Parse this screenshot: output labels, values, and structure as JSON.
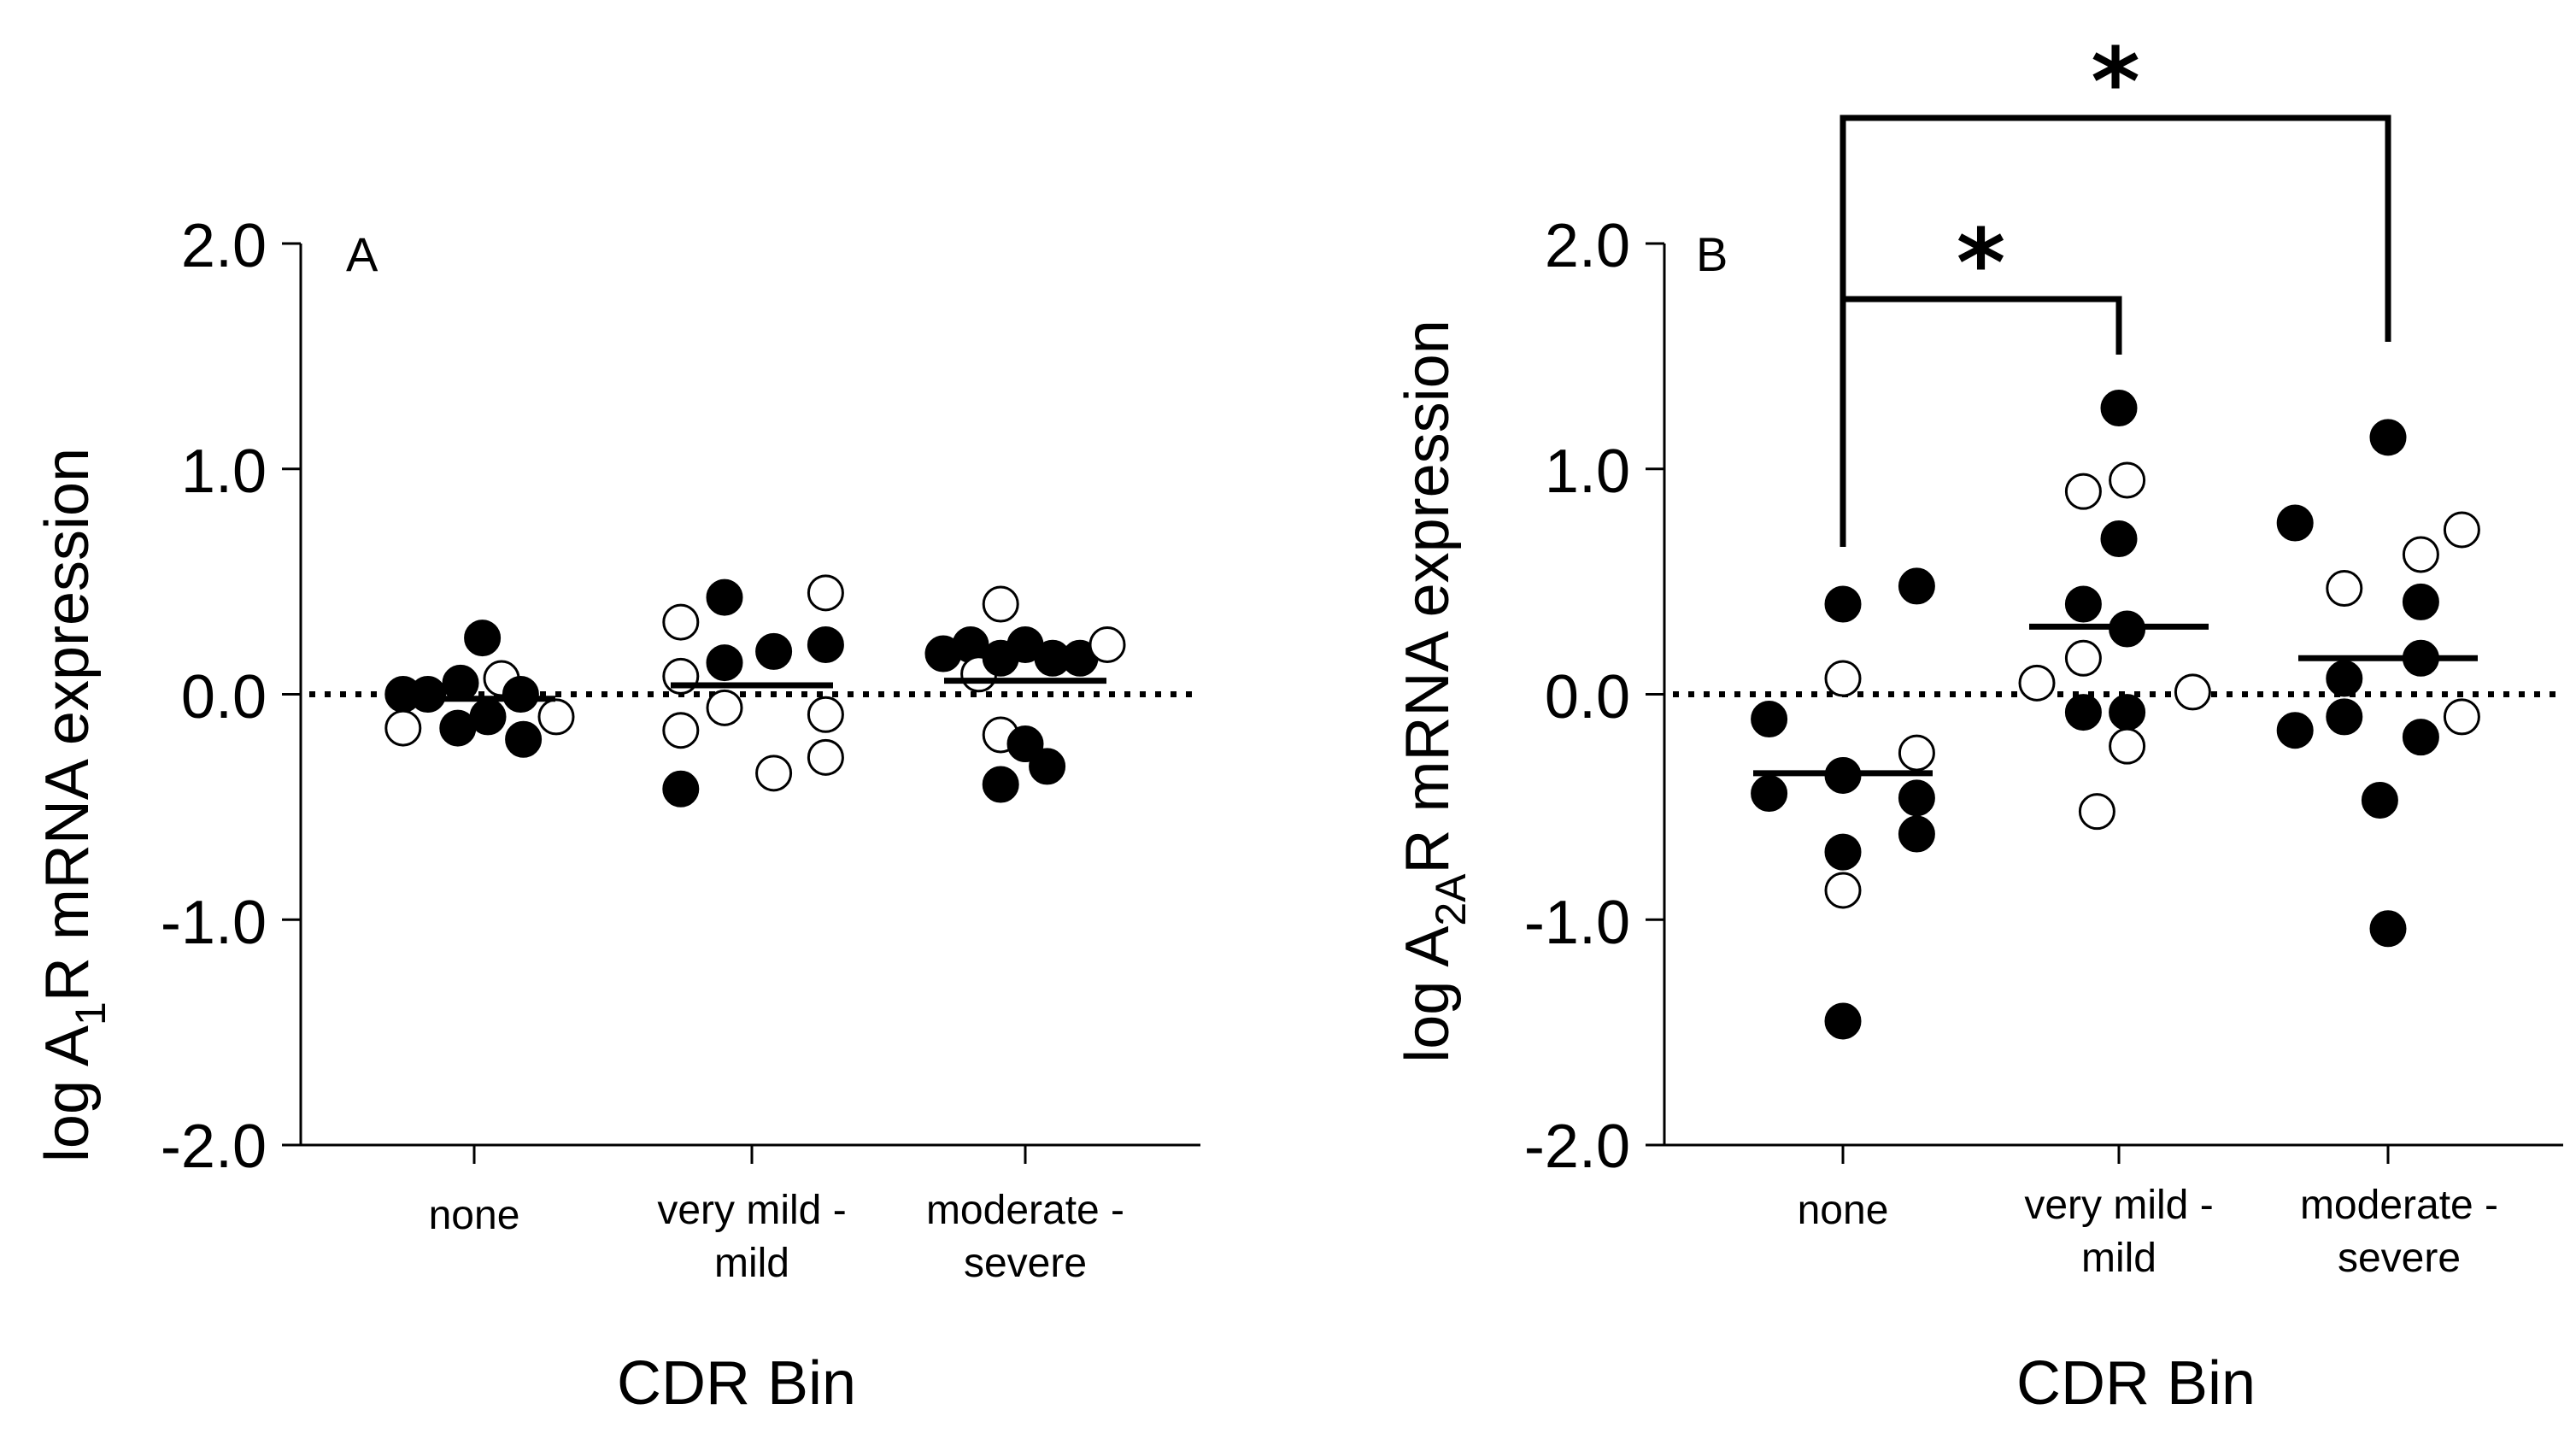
{
  "chart_data": [
    {
      "type": "scatter",
      "panel_label": "A",
      "title": "",
      "ylabel": {
        "prefix": "log A",
        "subscript": "1",
        "suffix": "R mRNA expression"
      },
      "xlabel": "CDR Bin",
      "ylim": [
        -2.0,
        2.0
      ],
      "yticks": [
        "2.0",
        "1.0",
        "0.0",
        "-1.0",
        "-2.0"
      ],
      "ytick_values": [
        2.0,
        1.0,
        0.0,
        -1.0,
        -2.0
      ],
      "categories": [
        [
          "none"
        ],
        [
          "very mild -",
          "mild"
        ],
        [
          "moderate -",
          "severe"
        ]
      ],
      "reference_line": 0.0,
      "means": [
        -0.02,
        0.04,
        0.06
      ],
      "points": [
        {
          "cat": 0,
          "dx": -0.26,
          "y": 0.0,
          "filled": true
        },
        {
          "cat": 0,
          "dx": -0.17,
          "y": 0.0,
          "filled": true
        },
        {
          "cat": 0,
          "dx": -0.05,
          "y": 0.05,
          "filled": true
        },
        {
          "cat": 0,
          "dx": 0.03,
          "y": 0.25,
          "filled": true
        },
        {
          "cat": 0,
          "dx": 0.1,
          "y": 0.07,
          "filled": false
        },
        {
          "cat": 0,
          "dx": 0.17,
          "y": 0.0,
          "filled": true
        },
        {
          "cat": 0,
          "dx": -0.26,
          "y": -0.15,
          "filled": false
        },
        {
          "cat": 0,
          "dx": -0.06,
          "y": -0.15,
          "filled": true
        },
        {
          "cat": 0,
          "dx": 0.05,
          "y": -0.1,
          "filled": true
        },
        {
          "cat": 0,
          "dx": 0.18,
          "y": -0.2,
          "filled": true
        },
        {
          "cat": 0,
          "dx": 0.3,
          "y": -0.1,
          "filled": false
        },
        {
          "cat": 1,
          "dx": -0.26,
          "y": 0.32,
          "filled": false
        },
        {
          "cat": 1,
          "dx": -0.26,
          "y": 0.08,
          "filled": false
        },
        {
          "cat": 1,
          "dx": -0.26,
          "y": -0.16,
          "filled": false
        },
        {
          "cat": 1,
          "dx": -0.26,
          "y": -0.42,
          "filled": true
        },
        {
          "cat": 1,
          "dx": -0.1,
          "y": 0.43,
          "filled": true
        },
        {
          "cat": 1,
          "dx": -0.1,
          "y": 0.14,
          "filled": true
        },
        {
          "cat": 1,
          "dx": -0.1,
          "y": -0.06,
          "filled": false
        },
        {
          "cat": 1,
          "dx": 0.08,
          "y": 0.19,
          "filled": true
        },
        {
          "cat": 1,
          "dx": 0.08,
          "y": -0.35,
          "filled": false
        },
        {
          "cat": 1,
          "dx": 0.27,
          "y": 0.45,
          "filled": false
        },
        {
          "cat": 1,
          "dx": 0.27,
          "y": 0.22,
          "filled": true
        },
        {
          "cat": 1,
          "dx": 0.27,
          "y": -0.09,
          "filled": false
        },
        {
          "cat": 1,
          "dx": 0.27,
          "y": -0.28,
          "filled": false
        },
        {
          "cat": 2,
          "dx": -0.3,
          "y": 0.18,
          "filled": true
        },
        {
          "cat": 2,
          "dx": -0.2,
          "y": 0.22,
          "filled": true
        },
        {
          "cat": 2,
          "dx": -0.09,
          "y": 0.4,
          "filled": false
        },
        {
          "cat": 2,
          "dx": -0.17,
          "y": 0.09,
          "filled": false
        },
        {
          "cat": 2,
          "dx": -0.09,
          "y": 0.16,
          "filled": true
        },
        {
          "cat": 2,
          "dx": 0.0,
          "y": 0.22,
          "filled": true
        },
        {
          "cat": 2,
          "dx": 0.1,
          "y": 0.16,
          "filled": true
        },
        {
          "cat": 2,
          "dx": 0.2,
          "y": 0.16,
          "filled": true
        },
        {
          "cat": 2,
          "dx": 0.3,
          "y": 0.22,
          "filled": false
        },
        {
          "cat": 2,
          "dx": -0.09,
          "y": -0.18,
          "filled": false
        },
        {
          "cat": 2,
          "dx": 0.0,
          "y": -0.22,
          "filled": true
        },
        {
          "cat": 2,
          "dx": 0.08,
          "y": -0.32,
          "filled": true
        },
        {
          "cat": 2,
          "dx": -0.09,
          "y": -0.4,
          "filled": true
        }
      ],
      "significance": []
    },
    {
      "type": "scatter",
      "panel_label": "B",
      "title": "",
      "ylabel": {
        "prefix": "log A",
        "subscript": "2A",
        "suffix": "R mRNA expression"
      },
      "xlabel": "CDR Bin",
      "ylim": [
        -2.0,
        2.0
      ],
      "yticks": [
        "2.0",
        "1.0",
        "0.0",
        "-1.0",
        "-2.0"
      ],
      "ytick_values": [
        2.0,
        1.0,
        0.0,
        -1.0,
        -2.0
      ],
      "categories": [
        [
          "none"
        ],
        [
          "very mild -",
          "mild"
        ],
        [
          "moderate -",
          "severe"
        ]
      ],
      "reference_line": 0.0,
      "means": [
        -0.35,
        0.3,
        0.16
      ],
      "points": [
        {
          "cat": 0,
          "dx": 0.0,
          "y": 0.4,
          "filled": true
        },
        {
          "cat": 0,
          "dx": 0.27,
          "y": 0.48,
          "filled": true
        },
        {
          "cat": 0,
          "dx": 0.0,
          "y": 0.07,
          "filled": false
        },
        {
          "cat": 0,
          "dx": -0.27,
          "y": -0.11,
          "filled": true
        },
        {
          "cat": 0,
          "dx": 0.27,
          "y": -0.26,
          "filled": false
        },
        {
          "cat": 0,
          "dx": 0.0,
          "y": -0.36,
          "filled": true
        },
        {
          "cat": 0,
          "dx": -0.27,
          "y": -0.44,
          "filled": true
        },
        {
          "cat": 0,
          "dx": 0.27,
          "y": -0.46,
          "filled": true
        },
        {
          "cat": 0,
          "dx": 0.27,
          "y": -0.62,
          "filled": true
        },
        {
          "cat": 0,
          "dx": 0.0,
          "y": -0.7,
          "filled": true
        },
        {
          "cat": 0,
          "dx": 0.0,
          "y": -0.87,
          "filled": false
        },
        {
          "cat": 0,
          "dx": 0.0,
          "y": -1.45,
          "filled": true
        },
        {
          "cat": 1,
          "dx": 0.0,
          "y": 1.27,
          "filled": true
        },
        {
          "cat": 1,
          "dx": -0.13,
          "y": 0.9,
          "filled": false
        },
        {
          "cat": 1,
          "dx": 0.03,
          "y": 0.95,
          "filled": false
        },
        {
          "cat": 1,
          "dx": 0.0,
          "y": 0.69,
          "filled": true
        },
        {
          "cat": 1,
          "dx": -0.13,
          "y": 0.4,
          "filled": true
        },
        {
          "cat": 1,
          "dx": 0.03,
          "y": 0.29,
          "filled": true
        },
        {
          "cat": 1,
          "dx": -0.13,
          "y": 0.16,
          "filled": false
        },
        {
          "cat": 1,
          "dx": -0.3,
          "y": 0.05,
          "filled": false
        },
        {
          "cat": 1,
          "dx": 0.27,
          "y": 0.01,
          "filled": false
        },
        {
          "cat": 1,
          "dx": -0.13,
          "y": -0.08,
          "filled": true
        },
        {
          "cat": 1,
          "dx": 0.03,
          "y": -0.08,
          "filled": true
        },
        {
          "cat": 1,
          "dx": 0.03,
          "y": -0.23,
          "filled": false
        },
        {
          "cat": 1,
          "dx": -0.08,
          "y": -0.52,
          "filled": false
        },
        {
          "cat": 2,
          "dx": 0.0,
          "y": 1.14,
          "filled": true
        },
        {
          "cat": 2,
          "dx": -0.34,
          "y": 0.76,
          "filled": true
        },
        {
          "cat": 2,
          "dx": 0.27,
          "y": 0.73,
          "filled": false
        },
        {
          "cat": 2,
          "dx": 0.12,
          "y": 0.62,
          "filled": false
        },
        {
          "cat": 2,
          "dx": -0.16,
          "y": 0.47,
          "filled": false
        },
        {
          "cat": 2,
          "dx": 0.12,
          "y": 0.41,
          "filled": true
        },
        {
          "cat": 2,
          "dx": 0.12,
          "y": 0.16,
          "filled": true
        },
        {
          "cat": 2,
          "dx": -0.16,
          "y": 0.07,
          "filled": true
        },
        {
          "cat": 2,
          "dx": -0.34,
          "y": -0.16,
          "filled": true
        },
        {
          "cat": 2,
          "dx": -0.16,
          "y": -0.1,
          "filled": true
        },
        {
          "cat": 2,
          "dx": 0.27,
          "y": -0.1,
          "filled": false
        },
        {
          "cat": 2,
          "dx": 0.12,
          "y": -0.19,
          "filled": true
        },
        {
          "cat": 2,
          "dx": -0.03,
          "y": -0.47,
          "filled": true
        },
        {
          "cat": 2,
          "dx": 0.0,
          "y": -1.04,
          "filled": true
        }
      ],
      "significance": [
        {
          "from": 0,
          "to": 1,
          "label": "*"
        },
        {
          "from": 0,
          "to": 2,
          "label": "*"
        }
      ]
    }
  ]
}
